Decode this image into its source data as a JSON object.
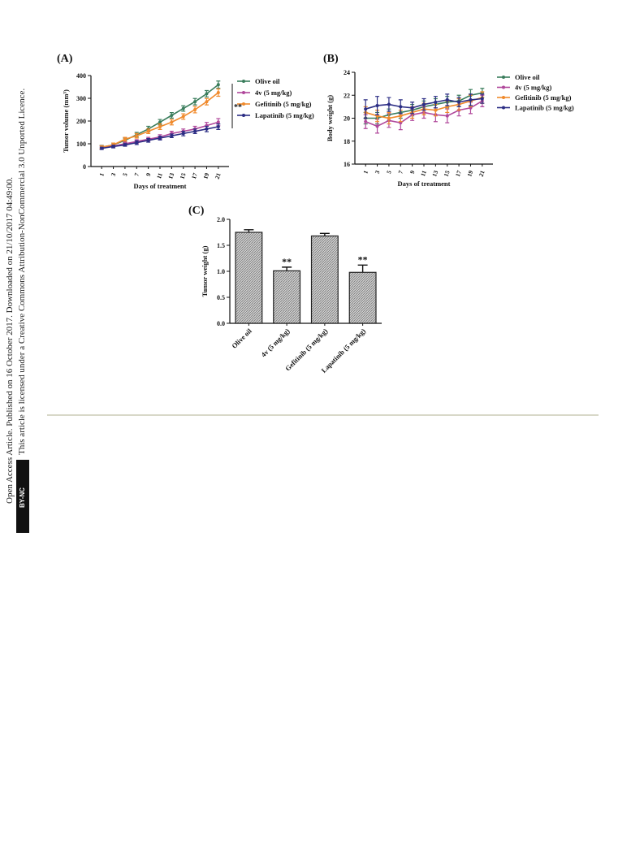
{
  "side_text": {
    "line1": "Open Access Article. Published on 16 October 2017. Downloaded on 21/10/2017 04:49:00.",
    "line2": "This article is licensed under a Creative Commons Attribution-NonCommercial 3.0 Unported Licence.",
    "badge": "BY-NC"
  },
  "chart_data": [
    {
      "type": "line",
      "panel": "(A)",
      "ylabel": "Tumor volume (mm³)",
      "xlabel": "Days of treatment",
      "categories": [
        1,
        3,
        5,
        7,
        9,
        11,
        13,
        15,
        17,
        19,
        21
      ],
      "ylim": [
        0,
        400
      ],
      "yticks": [
        0,
        100,
        200,
        300,
        400
      ],
      "annotation": "**",
      "series": [
        {
          "name": "Olive oil",
          "color": "#3a7d5c",
          "values": [
            85,
            95,
            115,
            140,
            165,
            195,
            225,
            255,
            285,
            320,
            360
          ],
          "errors": [
            8,
            8,
            10,
            10,
            12,
            12,
            12,
            12,
            14,
            14,
            16
          ]
        },
        {
          "name": "4v (5 mg/kg)",
          "color": "#b0479b",
          "values": [
            85,
            90,
            100,
            110,
            120,
            130,
            145,
            155,
            165,
            180,
            195
          ],
          "errors": [
            6,
            6,
            8,
            8,
            8,
            10,
            10,
            10,
            12,
            14,
            16
          ]
        },
        {
          "name": "Gefitinib (5 mg/kg)",
          "color": "#f08a2c",
          "values": [
            85,
            95,
            120,
            135,
            155,
            175,
            195,
            220,
            250,
            285,
            325
          ],
          "errors": [
            6,
            8,
            8,
            10,
            10,
            12,
            12,
            12,
            14,
            14,
            16
          ]
        },
        {
          "name": "Lapatinib (5 mg/kg)",
          "color": "#2b2d84",
          "values": [
            80,
            88,
            95,
            105,
            115,
            125,
            135,
            145,
            155,
            165,
            175
          ],
          "errors": [
            5,
            6,
            6,
            8,
            8,
            8,
            8,
            10,
            10,
            12,
            12
          ]
        }
      ]
    },
    {
      "type": "line",
      "panel": "(B)",
      "ylabel": "Body weight (g)",
      "xlabel": "Days of treatment",
      "categories": [
        1,
        3,
        5,
        7,
        9,
        11,
        13,
        15,
        17,
        19,
        21
      ],
      "ylim": [
        16,
        24
      ],
      "yticks": [
        16,
        18,
        20,
        22,
        24
      ],
      "series": [
        {
          "name": "Olive oil",
          "color": "#3a7d5c",
          "values": [
            20.0,
            20.0,
            20.3,
            20.5,
            20.7,
            21.0,
            21.2,
            21.4,
            21.5,
            22.0,
            22.2
          ],
          "errors": [
            0.5,
            0.5,
            0.5,
            0.5,
            0.5,
            0.5,
            0.5,
            0.5,
            0.5,
            0.5,
            0.4
          ]
        },
        {
          "name": "4v (5 mg/kg)",
          "color": "#b0479b",
          "values": [
            19.7,
            19.3,
            19.8,
            19.6,
            20.3,
            20.5,
            20.3,
            20.2,
            20.7,
            20.9,
            21.5
          ],
          "errors": [
            0.6,
            0.6,
            0.6,
            0.6,
            0.5,
            0.5,
            0.6,
            0.6,
            0.5,
            0.5,
            0.5
          ]
        },
        {
          "name": "Gefitinib (5 mg/kg)",
          "color": "#f08a2c",
          "values": [
            20.5,
            20.2,
            20.0,
            20.2,
            20.5,
            20.8,
            20.7,
            21.0,
            21.2,
            21.5,
            21.8
          ],
          "errors": [
            0.5,
            0.5,
            0.5,
            0.5,
            0.5,
            0.5,
            0.5,
            0.5,
            0.5,
            0.5,
            0.5
          ]
        },
        {
          "name": "Lapatinib (5 mg/kg)",
          "color": "#2b2d84",
          "values": [
            20.8,
            21.1,
            21.2,
            21.0,
            20.9,
            21.2,
            21.4,
            21.6,
            21.4,
            21.6,
            21.7
          ],
          "errors": [
            0.8,
            0.8,
            0.6,
            0.6,
            0.5,
            0.5,
            0.5,
            0.5,
            0.4,
            0.5,
            0.4
          ]
        }
      ]
    },
    {
      "type": "bar",
      "panel": "(C)",
      "ylabel": "Tumor weight (g)",
      "categories": [
        "Olive oil",
        "4v (5 mg/kg)",
        "Gefitinib (5 mg/kg)",
        "Lapatinib (5 mg/kg)"
      ],
      "values": [
        1.75,
        1.01,
        1.68,
        0.98
      ],
      "errors": [
        0.05,
        0.07,
        0.05,
        0.14
      ],
      "significance": [
        null,
        "**",
        null,
        "**"
      ],
      "color": "#b8b8b8",
      "ylim": [
        0,
        2.0
      ],
      "yticks": [
        {
          "value": 0,
          "label": "0.0"
        },
        {
          "value": 0.5,
          "label": "0.5"
        },
        {
          "value": 1.0,
          "label": "1.0"
        },
        {
          "value": 1.5,
          "label": "1.5"
        },
        {
          "value": 2.0,
          "label": "2.0"
        }
      ]
    }
  ]
}
